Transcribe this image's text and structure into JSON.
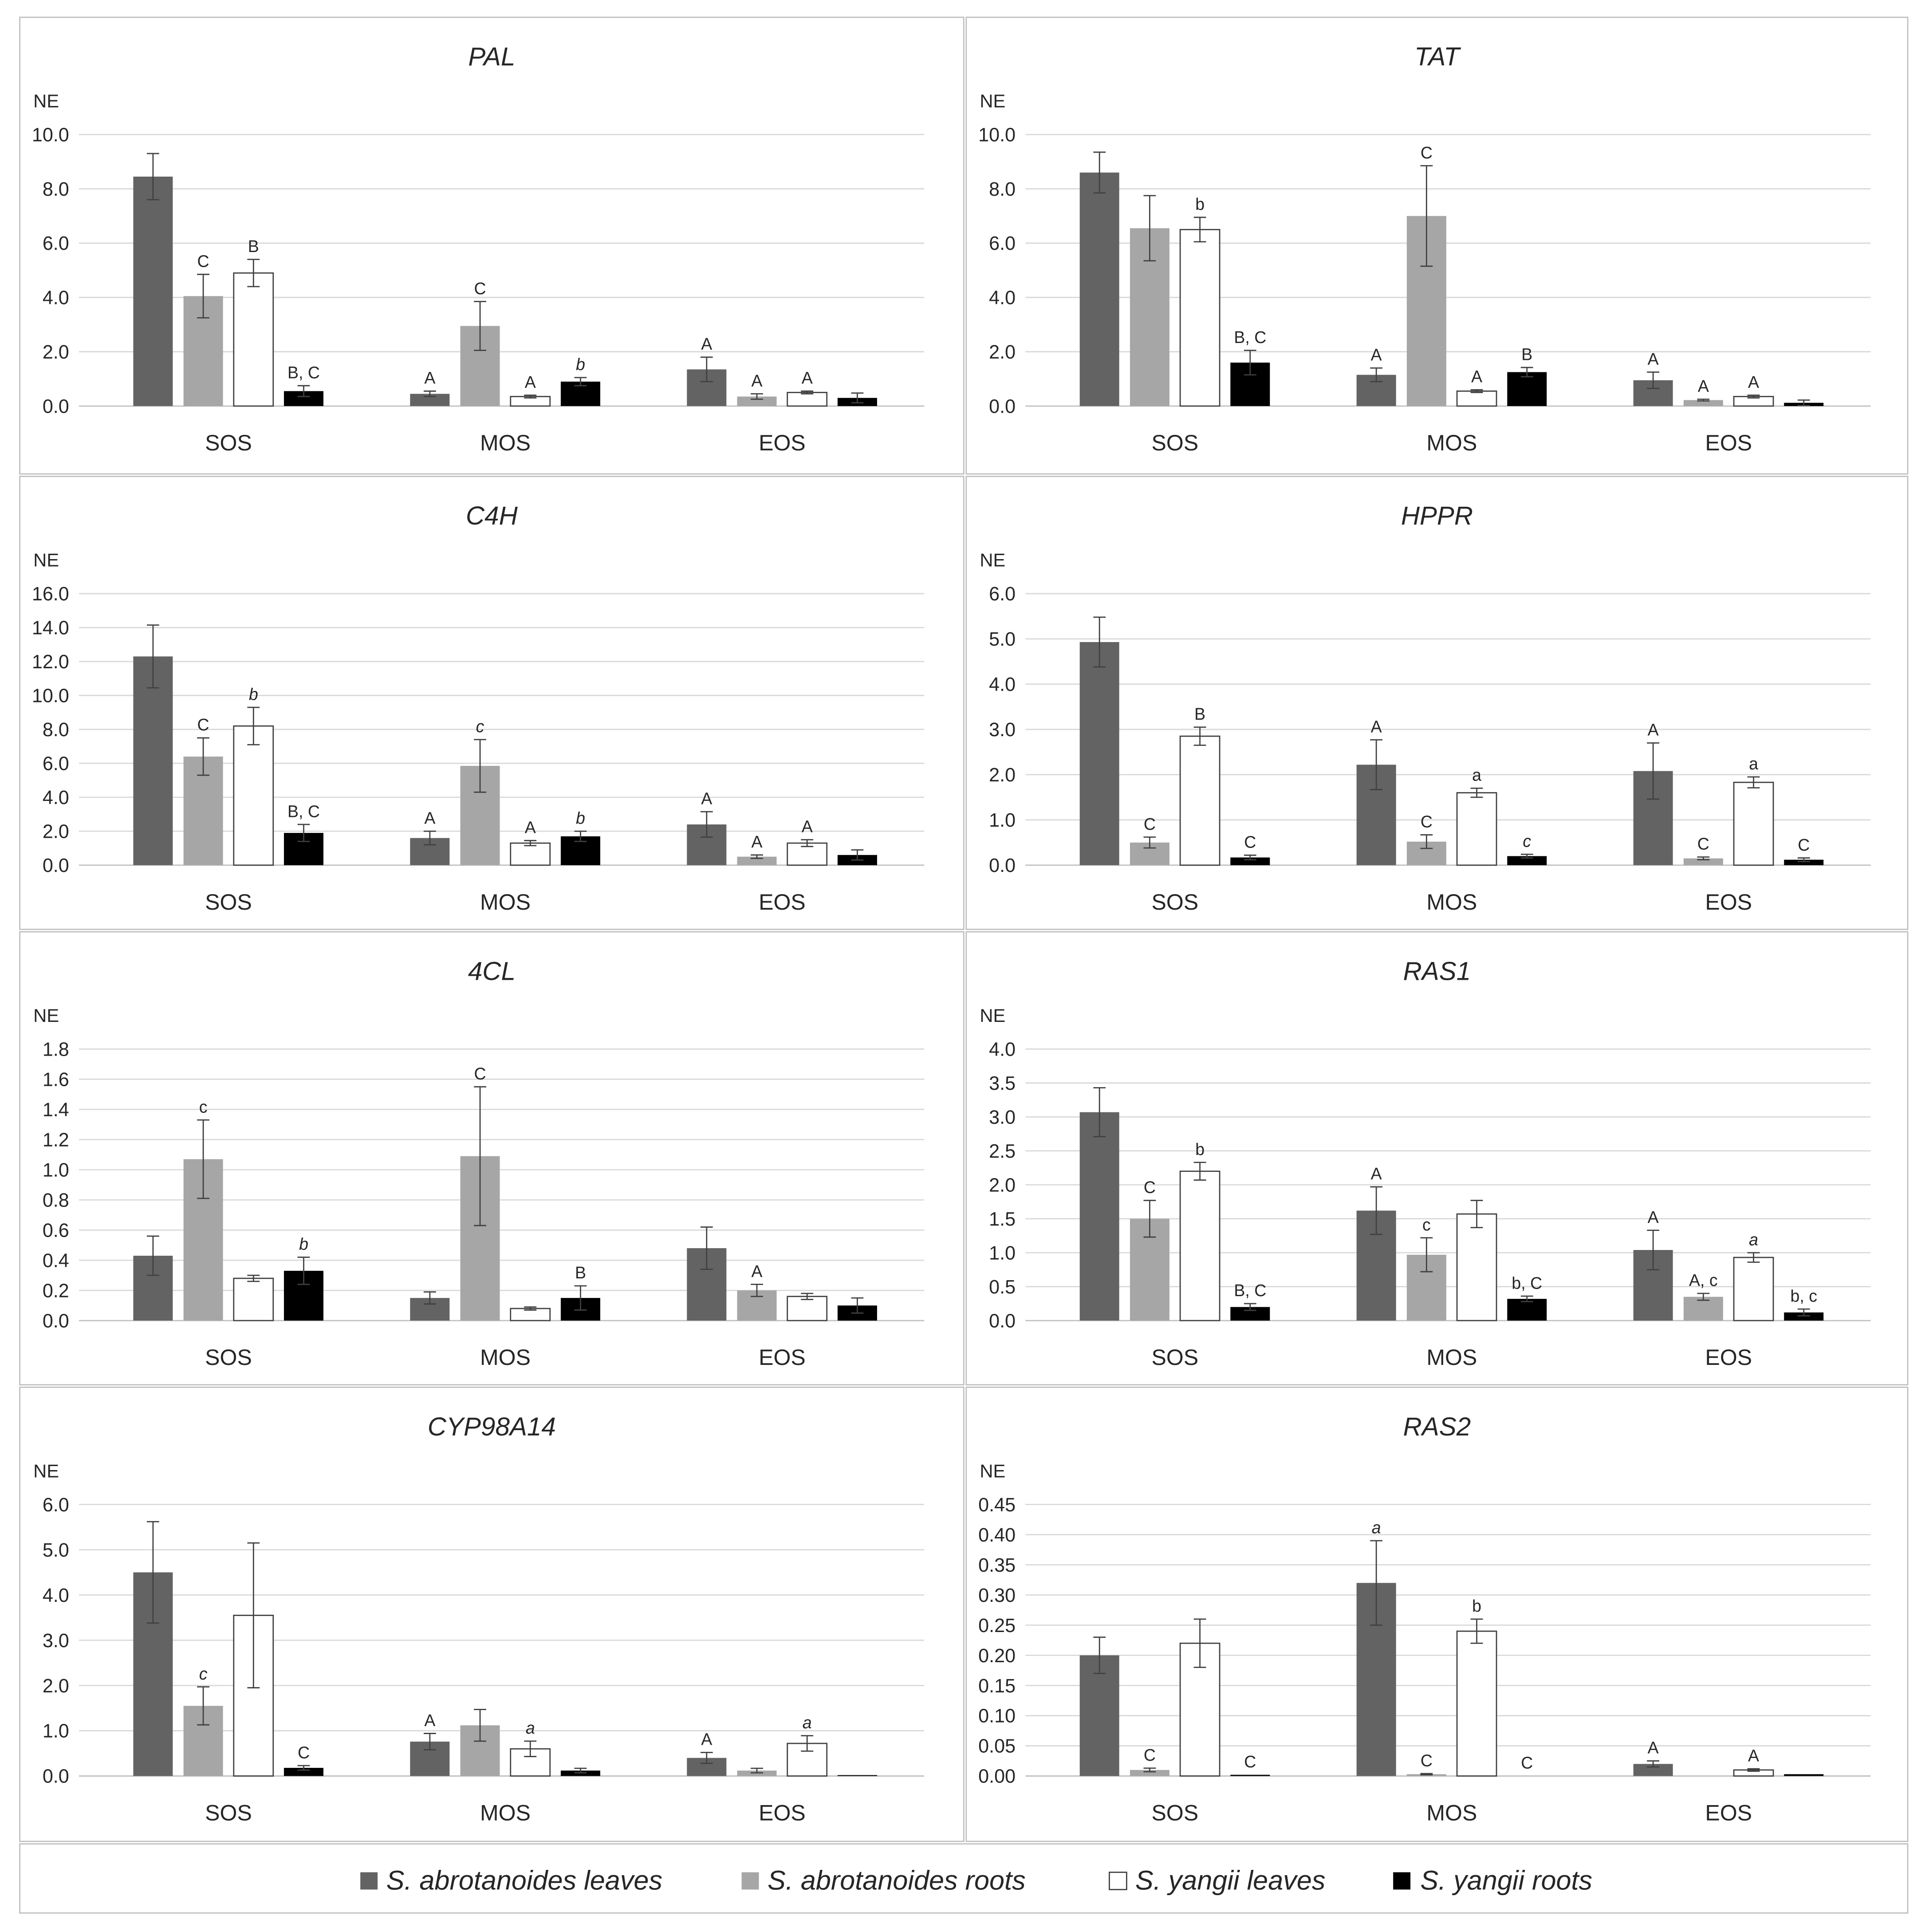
{
  "legend": [
    {
      "label": "S. abrotanoides leaves",
      "color": "#636363"
    },
    {
      "label": "S. abrotanoides roots",
      "color": "#a6a6a6"
    },
    {
      "label": "S. yangii leaves",
      "color": "#ffffff"
    },
    {
      "label": "S. yangii roots",
      "color": "#000000"
    }
  ],
  "chart_data": [
    {
      "type": "bar",
      "title": "PAL",
      "ylabel": "NE",
      "ylim": [
        0,
        10
      ],
      "yticks": [
        "0.0",
        "2.0",
        "4.0",
        "6.0",
        "8.0",
        "10.0"
      ],
      "categories": [
        "SOS",
        "MOS",
        "EOS"
      ],
      "series": [
        {
          "values": [
            8.45,
            0.45,
            1.35
          ],
          "errors": [
            0.85,
            0.1,
            0.45
          ],
          "labels": [
            "",
            "A",
            "A"
          ],
          "label_italic": [
            false,
            false,
            false
          ]
        },
        {
          "values": [
            4.05,
            2.95,
            0.35
          ],
          "errors": [
            0.8,
            0.9,
            0.1
          ],
          "labels": [
            "C",
            "C",
            "A"
          ],
          "label_italic": [
            false,
            false,
            false
          ]
        },
        {
          "values": [
            4.9,
            0.35,
            0.5
          ],
          "errors": [
            0.5,
            0.05,
            0.05
          ],
          "labels": [
            "B",
            "A",
            "A"
          ],
          "label_italic": [
            false,
            false,
            false
          ]
        },
        {
          "values": [
            0.55,
            0.9,
            0.3
          ],
          "errors": [
            0.2,
            0.15,
            0.18
          ],
          "labels": [
            "B, C",
            "b",
            ""
          ],
          "label_italic": [
            false,
            true,
            false
          ]
        }
      ]
    },
    {
      "type": "bar",
      "title": "TAT",
      "ylabel": "NE",
      "ylim": [
        0,
        10
      ],
      "yticks": [
        "0.0",
        "2.0",
        "4.0",
        "6.0",
        "8.0",
        "10.0"
      ],
      "categories": [
        "SOS",
        "MOS",
        "EOS"
      ],
      "series": [
        {
          "values": [
            8.6,
            1.15,
            0.95
          ],
          "errors": [
            0.75,
            0.25,
            0.3
          ],
          "labels": [
            "",
            "A",
            "A"
          ],
          "label_italic": [
            false,
            false,
            false
          ]
        },
        {
          "values": [
            6.55,
            7.0,
            0.22
          ],
          "errors": [
            1.2,
            1.85,
            0.03
          ],
          "labels": [
            "",
            "C",
            "A"
          ],
          "label_italic": [
            false,
            false,
            false
          ]
        },
        {
          "values": [
            6.5,
            0.55,
            0.35
          ],
          "errors": [
            0.45,
            0.05,
            0.05
          ],
          "labels": [
            "b",
            "A",
            "A"
          ],
          "label_italic": [
            false,
            false,
            false
          ]
        },
        {
          "values": [
            1.6,
            1.25,
            0.12
          ],
          "errors": [
            0.45,
            0.17,
            0.1
          ],
          "labels": [
            "B, C",
            "B",
            ""
          ],
          "label_italic": [
            false,
            false,
            false
          ]
        }
      ]
    },
    {
      "type": "bar",
      "title": "C4H",
      "ylabel": "NE",
      "ylim": [
        0,
        16
      ],
      "yticks": [
        "0.0",
        "2.0",
        "4.0",
        "6.0",
        "8.0",
        "10.0",
        "12.0",
        "14.0",
        "16.0"
      ],
      "categories": [
        "SOS",
        "MOS",
        "EOS"
      ],
      "series": [
        {
          "values": [
            12.3,
            1.6,
            2.4
          ],
          "errors": [
            1.85,
            0.4,
            0.75
          ],
          "labels": [
            "",
            "A",
            "A"
          ],
          "label_italic": [
            false,
            false,
            false
          ]
        },
        {
          "values": [
            6.4,
            5.85,
            0.5
          ],
          "errors": [
            1.1,
            1.55,
            0.1
          ],
          "labels": [
            "C",
            "c",
            "A"
          ],
          "label_italic": [
            false,
            true,
            false
          ]
        },
        {
          "values": [
            8.2,
            1.3,
            1.3
          ],
          "errors": [
            1.1,
            0.15,
            0.2
          ],
          "labels": [
            "b",
            "A",
            "A"
          ],
          "label_italic": [
            true,
            false,
            false
          ]
        },
        {
          "values": [
            1.9,
            1.7,
            0.6
          ],
          "errors": [
            0.5,
            0.3,
            0.3
          ],
          "labels": [
            "B, C",
            "b",
            ""
          ],
          "label_italic": [
            false,
            true,
            false
          ]
        }
      ]
    },
    {
      "type": "bar",
      "title": "HPPR",
      "ylabel": "NE",
      "ylim": [
        0,
        6
      ],
      "yticks": [
        "0.0",
        "1.0",
        "2.0",
        "3.0",
        "4.0",
        "5.0",
        "6.0"
      ],
      "categories": [
        "SOS",
        "MOS",
        "EOS"
      ],
      "series": [
        {
          "values": [
            4.93,
            2.22,
            2.08
          ],
          "errors": [
            0.55,
            0.55,
            0.62
          ],
          "labels": [
            "",
            "A",
            "A"
          ],
          "label_italic": [
            false,
            false,
            false
          ]
        },
        {
          "values": [
            0.5,
            0.52,
            0.15
          ],
          "errors": [
            0.12,
            0.15,
            0.03
          ],
          "labels": [
            "C",
            "C",
            "C"
          ],
          "label_italic": [
            false,
            false,
            false
          ]
        },
        {
          "values": [
            2.85,
            1.6,
            1.83
          ],
          "errors": [
            0.2,
            0.1,
            0.12
          ],
          "labels": [
            "B",
            "a",
            "a"
          ],
          "label_italic": [
            false,
            false,
            false
          ]
        },
        {
          "values": [
            0.17,
            0.2,
            0.12
          ],
          "errors": [
            0.05,
            0.04,
            0.04
          ],
          "labels": [
            "C",
            "c",
            "C"
          ],
          "label_italic": [
            false,
            true,
            false
          ]
        }
      ]
    },
    {
      "type": "bar",
      "title": "4CL",
      "ylabel": "NE",
      "ylim": [
        0,
        1.8
      ],
      "yticks": [
        "0.0",
        "0.2",
        "0.4",
        "0.6",
        "0.8",
        "1.0",
        "1.2",
        "1.4",
        "1.6",
        "1.8"
      ],
      "categories": [
        "SOS",
        "MOS",
        "EOS"
      ],
      "series": [
        {
          "values": [
            0.43,
            0.15,
            0.48
          ],
          "errors": [
            0.13,
            0.04,
            0.14
          ],
          "labels": [
            "",
            "",
            ""
          ],
          "label_italic": [
            false,
            false,
            false
          ]
        },
        {
          "values": [
            1.07,
            1.09,
            0.2
          ],
          "errors": [
            0.26,
            0.46,
            0.04
          ],
          "labels": [
            "c",
            "C",
            "A"
          ],
          "label_italic": [
            false,
            false,
            false
          ]
        },
        {
          "values": [
            0.28,
            0.08,
            0.16
          ],
          "errors": [
            0.02,
            0.01,
            0.02
          ],
          "labels": [
            "",
            "",
            ""
          ],
          "label_italic": [
            false,
            false,
            false
          ]
        },
        {
          "values": [
            0.33,
            0.15,
            0.1
          ],
          "errors": [
            0.09,
            0.08,
            0.05
          ],
          "labels": [
            "b",
            "B",
            ""
          ],
          "label_italic": [
            true,
            false,
            false
          ]
        }
      ]
    },
    {
      "type": "bar",
      "title": "RAS1",
      "ylabel": "NE",
      "ylim": [
        0,
        4
      ],
      "yticks": [
        "0.0",
        "0.5",
        "1.0",
        "1.5",
        "2.0",
        "2.5",
        "3.0",
        "3.5",
        "4.0"
      ],
      "categories": [
        "SOS",
        "MOS",
        "EOS"
      ],
      "series": [
        {
          "values": [
            3.07,
            1.62,
            1.04
          ],
          "errors": [
            0.36,
            0.35,
            0.29
          ],
          "labels": [
            "",
            "A",
            "A"
          ],
          "label_italic": [
            false,
            false,
            false
          ]
        },
        {
          "values": [
            1.5,
            0.97,
            0.35
          ],
          "errors": [
            0.27,
            0.25,
            0.05
          ],
          "labels": [
            "C",
            "c",
            "A, c"
          ],
          "label_italic": [
            false,
            false,
            false
          ]
        },
        {
          "values": [
            2.2,
            1.57,
            0.93
          ],
          "errors": [
            0.13,
            0.2,
            0.07
          ],
          "labels": [
            "b",
            "",
            "a"
          ],
          "label_italic": [
            false,
            false,
            true
          ]
        },
        {
          "values": [
            0.2,
            0.32,
            0.12
          ],
          "errors": [
            0.05,
            0.04,
            0.05
          ],
          "labels": [
            "B, C",
            "b, C",
            "b, c"
          ],
          "label_italic": [
            false,
            false,
            false
          ]
        }
      ]
    },
    {
      "type": "bar",
      "title": "CYP98A14",
      "ylabel": "NE",
      "ylim": [
        0,
        6
      ],
      "yticks": [
        "0.0",
        "1.0",
        "2.0",
        "3.0",
        "4.0",
        "5.0",
        "6.0"
      ],
      "categories": [
        "SOS",
        "MOS",
        "EOS"
      ],
      "series": [
        {
          "values": [
            4.5,
            0.76,
            0.4
          ],
          "errors": [
            1.12,
            0.18,
            0.12
          ],
          "labels": [
            "",
            "A",
            "A"
          ],
          "label_italic": [
            false,
            false,
            false
          ]
        },
        {
          "values": [
            1.55,
            1.12,
            0.12
          ],
          "errors": [
            0.42,
            0.35,
            0.05
          ],
          "labels": [
            "c",
            "",
            ""
          ],
          "label_italic": [
            true,
            false,
            false
          ]
        },
        {
          "values": [
            3.55,
            0.6,
            0.72
          ],
          "errors": [
            1.6,
            0.17,
            0.17
          ],
          "labels": [
            "",
            "a",
            "a"
          ],
          "label_italic": [
            false,
            true,
            true
          ]
        },
        {
          "values": [
            0.18,
            0.12,
            0.02
          ],
          "errors": [
            0.05,
            0.05,
            0.0
          ],
          "labels": [
            "C",
            "",
            ""
          ],
          "label_italic": [
            false,
            false,
            false
          ]
        }
      ]
    },
    {
      "type": "bar",
      "title": "RAS2",
      "ylabel": "NE",
      "ylim": [
        0,
        0.45
      ],
      "yticks": [
        "0.00",
        "0.05",
        "0.10",
        "0.15",
        "0.20",
        "0.25",
        "0.30",
        "0.35",
        "0.40",
        "0.45"
      ],
      "categories": [
        "SOS",
        "MOS",
        "EOS"
      ],
      "series": [
        {
          "values": [
            0.2,
            0.32,
            0.02
          ],
          "errors": [
            0.03,
            0.07,
            0.005
          ],
          "labels": [
            "",
            "a",
            "A"
          ],
          "label_italic": [
            false,
            true,
            false
          ]
        },
        {
          "values": [
            0.01,
            0.003,
            0.0
          ],
          "errors": [
            0.003,
            0.001,
            0.0
          ],
          "labels": [
            "C",
            "C",
            ""
          ],
          "label_italic": [
            false,
            false,
            false
          ]
        },
        {
          "values": [
            0.22,
            0.24,
            0.01
          ],
          "errors": [
            0.04,
            0.02,
            0.002
          ],
          "labels": [
            "",
            "b",
            "A"
          ],
          "label_italic": [
            false,
            false,
            false
          ]
        },
        {
          "values": [
            0.002,
            0.0,
            0.003
          ],
          "errors": [
            0.0,
            0.0,
            0.0
          ],
          "labels": [
            "C",
            "C",
            ""
          ],
          "label_italic": [
            false,
            false,
            false
          ]
        }
      ]
    }
  ]
}
